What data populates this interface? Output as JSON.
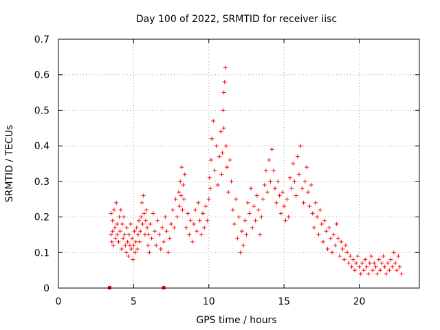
{
  "chart_data": {
    "type": "scatter",
    "title": "Day 100 of 2022, SRMTID for receiver iisc",
    "xlabel": "GPS time / hours",
    "ylabel": "SRMTID / TECUs",
    "xlim": [
      0,
      24
    ],
    "ylim": [
      0,
      0.7
    ],
    "x_ticks": [
      0,
      5,
      10,
      15,
      20
    ],
    "x_tick_labels": [
      "0",
      "5",
      "10",
      "15",
      "20"
    ],
    "y_ticks": [
      0,
      0.1,
      0.2,
      0.3,
      0.4,
      0.5,
      0.6,
      0.7
    ],
    "y_tick_labels": [
      "0",
      "0.1",
      "0.2",
      "0.3",
      "0.4",
      "0.5",
      "0.6",
      "0.7"
    ],
    "grid": true,
    "marker": "plus",
    "color": "#ff0000",
    "zero_markers": {
      "x": [
        3.4,
        7.0
      ],
      "y": [
        0,
        0
      ]
    },
    "series": [
      {
        "name": "SRMTID",
        "x": [
          3.5,
          3.5,
          3.55,
          3.6,
          3.6,
          3.65,
          3.7,
          3.75,
          3.8,
          3.85,
          3.9,
          3.9,
          4.0,
          4.05,
          4.1,
          4.15,
          4.2,
          4.25,
          4.3,
          4.35,
          4.4,
          4.45,
          4.5,
          4.55,
          4.6,
          4.65,
          4.7,
          4.75,
          4.8,
          4.85,
          4.9,
          4.95,
          5.0,
          5.05,
          5.1,
          5.15,
          5.2,
          5.25,
          5.3,
          5.35,
          5.4,
          5.45,
          5.5,
          5.55,
          5.6,
          5.65,
          5.7,
          5.75,
          5.8,
          5.85,
          5.9,
          5.95,
          6.0,
          6.05,
          6.1,
          6.2,
          6.3,
          6.4,
          6.5,
          6.6,
          6.7,
          6.8,
          6.9,
          7.0,
          7.1,
          7.2,
          7.3,
          7.4,
          7.5,
          7.6,
          7.7,
          7.8,
          7.9,
          8.0,
          8.05,
          8.1,
          8.15,
          8.2,
          8.25,
          8.3,
          8.35,
          8.4,
          8.5,
          8.6,
          8.7,
          8.8,
          8.9,
          9.0,
          9.1,
          9.2,
          9.3,
          9.4,
          9.5,
          9.6,
          9.7,
          9.8,
          9.9,
          10.0,
          10.05,
          10.1,
          10.15,
          10.2,
          10.3,
          10.4,
          10.5,
          10.6,
          10.7,
          10.8,
          10.85,
          10.9,
          10.95,
          11.0,
          11.0,
          11.05,
          11.1,
          11.15,
          11.2,
          11.3,
          11.4,
          11.5,
          11.6,
          11.7,
          11.8,
          11.9,
          12.0,
          12.1,
          12.2,
          12.3,
          12.4,
          12.5,
          12.6,
          12.7,
          12.8,
          12.9,
          13.0,
          13.1,
          13.2,
          13.3,
          13.4,
          13.5,
          13.6,
          13.7,
          13.8,
          13.9,
          14.0,
          14.1,
          14.2,
          14.3,
          14.4,
          14.5,
          14.6,
          14.7,
          14.8,
          14.9,
          15.0,
          15.1,
          15.2,
          15.3,
          15.4,
          15.5,
          15.6,
          15.7,
          15.8,
          15.9,
          16.0,
          16.1,
          16.2,
          16.3,
          16.4,
          16.5,
          16.6,
          16.7,
          16.8,
          16.9,
          17.0,
          17.1,
          17.2,
          17.3,
          17.4,
          17.5,
          17.6,
          17.7,
          17.8,
          17.9,
          18.0,
          18.1,
          18.2,
          18.3,
          18.4,
          18.5,
          18.6,
          18.7,
          18.8,
          18.9,
          19.0,
          19.1,
          19.2,
          19.3,
          19.4,
          19.5,
          19.6,
          19.7,
          19.8,
          19.9,
          20.0,
          20.1,
          20.2,
          20.3,
          20.4,
          20.5,
          20.6,
          20.7,
          20.8,
          20.9,
          21.0,
          21.1,
          21.2,
          21.3,
          21.4,
          21.5,
          21.6,
          21.7,
          21.8,
          21.9,
          22.0,
          22.1,
          22.2,
          22.3,
          22.4,
          22.5,
          22.6,
          22.7,
          22.8
        ],
        "y": [
          0.21,
          0.15,
          0.13,
          0.19,
          0.16,
          0.12,
          0.22,
          0.17,
          0.14,
          0.24,
          0.18,
          0.15,
          0.13,
          0.2,
          0.16,
          0.22,
          0.11,
          0.18,
          0.14,
          0.2,
          0.15,
          0.12,
          0.1,
          0.17,
          0.13,
          0.09,
          0.15,
          0.12,
          0.18,
          0.11,
          0.14,
          0.08,
          0.12,
          0.16,
          0.1,
          0.13,
          0.17,
          0.11,
          0.15,
          0.19,
          0.13,
          0.16,
          0.2,
          0.24,
          0.18,
          0.26,
          0.21,
          0.15,
          0.19,
          0.22,
          0.17,
          0.12,
          0.15,
          0.1,
          0.18,
          0.14,
          0.21,
          0.16,
          0.12,
          0.19,
          0.15,
          0.11,
          0.17,
          0.13,
          0.2,
          0.16,
          0.1,
          0.14,
          0.18,
          0.22,
          0.17,
          0.25,
          0.2,
          0.27,
          0.23,
          0.3,
          0.26,
          0.34,
          0.22,
          0.29,
          0.25,
          0.32,
          0.17,
          0.21,
          0.15,
          0.19,
          0.13,
          0.18,
          0.22,
          0.16,
          0.24,
          0.19,
          0.15,
          0.21,
          0.17,
          0.23,
          0.19,
          0.25,
          0.31,
          0.28,
          0.36,
          0.42,
          0.47,
          0.33,
          0.4,
          0.29,
          0.37,
          0.44,
          0.32,
          0.38,
          0.5,
          0.45,
          0.55,
          0.58,
          0.62,
          0.4,
          0.34,
          0.27,
          0.36,
          0.3,
          0.22,
          0.18,
          0.25,
          0.14,
          0.2,
          0.1,
          0.16,
          0.12,
          0.19,
          0.15,
          0.24,
          0.21,
          0.28,
          0.17,
          0.23,
          0.19,
          0.26,
          0.22,
          0.15,
          0.2,
          0.25,
          0.29,
          0.33,
          0.27,
          0.36,
          0.3,
          0.39,
          0.33,
          0.28,
          0.24,
          0.3,
          0.26,
          0.21,
          0.27,
          0.23,
          0.19,
          0.25,
          0.2,
          0.31,
          0.28,
          0.35,
          0.3,
          0.26,
          0.37,
          0.32,
          0.4,
          0.28,
          0.24,
          0.3,
          0.34,
          0.27,
          0.23,
          0.29,
          0.21,
          0.17,
          0.24,
          0.2,
          0.15,
          0.22,
          0.18,
          0.13,
          0.19,
          0.16,
          0.11,
          0.17,
          0.14,
          0.1,
          0.15,
          0.12,
          0.18,
          0.14,
          0.09,
          0.13,
          0.11,
          0.08,
          0.12,
          0.1,
          0.07,
          0.09,
          0.06,
          0.08,
          0.05,
          0.07,
          0.09,
          0.06,
          0.04,
          0.07,
          0.05,
          0.08,
          0.06,
          0.04,
          0.07,
          0.09,
          0.05,
          0.07,
          0.06,
          0.04,
          0.08,
          0.05,
          0.07,
          0.09,
          0.06,
          0.04,
          0.07,
          0.05,
          0.08,
          0.06,
          0.1,
          0.07,
          0.05,
          0.09,
          0.06,
          0.04
        ]
      }
    ]
  }
}
